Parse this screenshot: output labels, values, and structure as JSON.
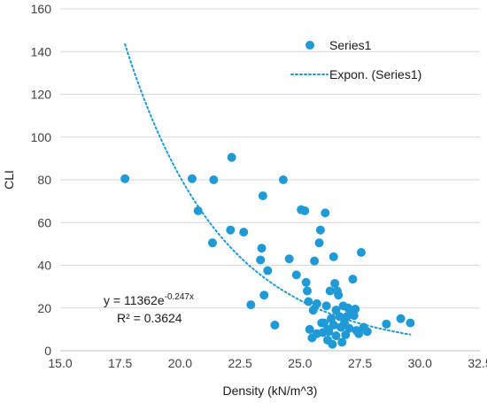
{
  "chart_data": {
    "type": "scatter",
    "xlabel": "Density (kN/m^3)",
    "ylabel": "CLI",
    "xlim": [
      15.0,
      32.5
    ],
    "ylim": [
      0,
      160
    ],
    "x_ticks": [
      "15.0",
      "17.5",
      "20.0",
      "22.5",
      "25.0",
      "27.5",
      "30.0",
      "32.5"
    ],
    "x_tick_values": [
      15.0,
      17.5,
      20.0,
      22.5,
      25.0,
      27.5,
      30.0,
      32.5
    ],
    "y_ticks": [
      "0",
      "20",
      "40",
      "60",
      "80",
      "100",
      "120",
      "140",
      "160"
    ],
    "y_tick_values": [
      0,
      20,
      40,
      60,
      80,
      100,
      120,
      140,
      160
    ],
    "grid": "horizontal",
    "legend_position": "top-right",
    "series": [
      {
        "name": "Series1",
        "color": "#1f9ad6",
        "marker": "circle",
        "points": [
          [
            17.7,
            80.5
          ],
          [
            20.5,
            80.5
          ],
          [
            20.75,
            65.5
          ],
          [
            21.4,
            80
          ],
          [
            21.35,
            50.5
          ],
          [
            22.15,
            90.5
          ],
          [
            22.1,
            56.5
          ],
          [
            22.65,
            55.5
          ],
          [
            22.95,
            21.5
          ],
          [
            23.35,
            42.5
          ],
          [
            23.4,
            48
          ],
          [
            23.45,
            72.5
          ],
          [
            23.5,
            26
          ],
          [
            23.65,
            37.5
          ],
          [
            23.95,
            12
          ],
          [
            24.3,
            80
          ],
          [
            24.55,
            43
          ],
          [
            24.85,
            35.5
          ],
          [
            25.05,
            66
          ],
          [
            25.2,
            65.5
          ],
          [
            25.25,
            32
          ],
          [
            25.3,
            28
          ],
          [
            25.35,
            23
          ],
          [
            25.4,
            10
          ],
          [
            25.5,
            6
          ],
          [
            25.55,
            19
          ],
          [
            25.6,
            42
          ],
          [
            25.7,
            22
          ],
          [
            25.8,
            50.5
          ],
          [
            25.85,
            56.5
          ],
          [
            25.9,
            13
          ],
          [
            25.95,
            8.5
          ],
          [
            26.0,
            13
          ],
          [
            26.05,
            64.5
          ],
          [
            26.1,
            21
          ],
          [
            26.15,
            10
          ],
          [
            26.2,
            9
          ],
          [
            26.25,
            28
          ],
          [
            26.3,
            15
          ],
          [
            26.35,
            3
          ],
          [
            26.4,
            44
          ],
          [
            26.45,
            31.5
          ],
          [
            26.5,
            19
          ],
          [
            26.5,
            7
          ],
          [
            26.55,
            28
          ],
          [
            26.6,
            26
          ],
          [
            26.65,
            16
          ],
          [
            26.7,
            11
          ],
          [
            26.75,
            4
          ],
          [
            26.8,
            21
          ],
          [
            26.85,
            13
          ],
          [
            26.9,
            7.5
          ],
          [
            26.95,
            16
          ],
          [
            27.0,
            20
          ],
          [
            27.05,
            10.5
          ],
          [
            27.1,
            18
          ],
          [
            27.2,
            33.5
          ],
          [
            27.25,
            16.5
          ],
          [
            27.3,
            19.5
          ],
          [
            27.35,
            9.5
          ],
          [
            27.45,
            8
          ],
          [
            27.55,
            46
          ],
          [
            27.65,
            11
          ],
          [
            27.8,
            9
          ],
          [
            28.6,
            12.5
          ],
          [
            29.2,
            15
          ],
          [
            29.6,
            13
          ],
          [
            26.15,
            5
          ],
          [
            26.4,
            12
          ],
          [
            25.7,
            8
          ]
        ]
      },
      {
        "name": "Expon. (Series1)",
        "color": "#1f9ad6",
        "style": "dotted",
        "fit": {
          "a": 11362,
          "b": -0.247,
          "x_from": 17.7,
          "x_to": 29.6
        }
      }
    ],
    "annotations": {
      "equation_base": "y = 11362e",
      "equation_exp": "-0.247x",
      "r_squared": "R² = 0.3624"
    }
  }
}
